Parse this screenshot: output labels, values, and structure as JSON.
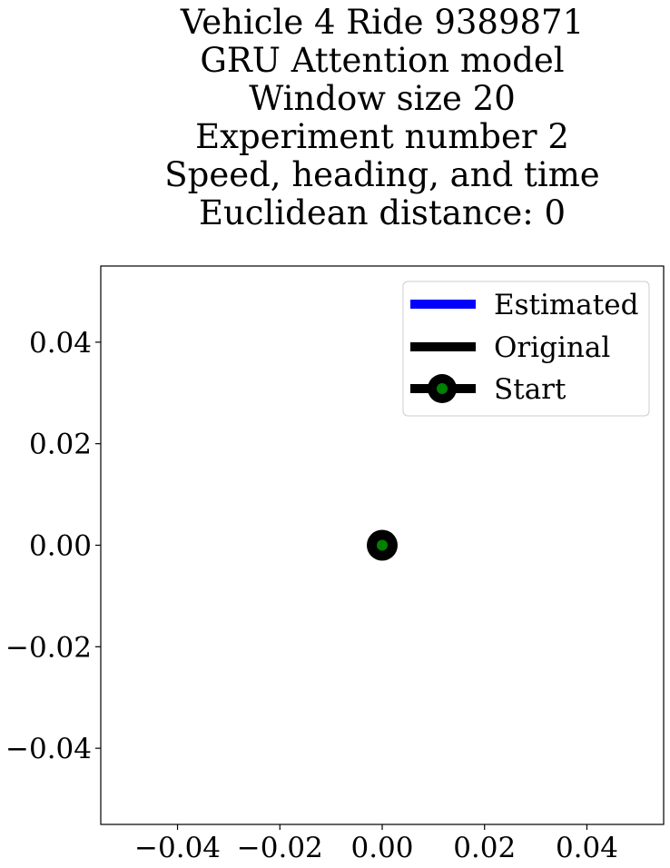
{
  "chart_data": {
    "type": "line",
    "title_lines": [
      "Vehicle 4 Ride 9389871",
      "GRU Attention model",
      "Window size 20",
      "Experiment number 2",
      "Speed, heading, and time",
      "Euclidean distance: 0"
    ],
    "xlabel": "",
    "ylabel": "",
    "xlim": [
      -0.055,
      0.055
    ],
    "ylim": [
      -0.055,
      0.055
    ],
    "x_ticks": [
      -0.04,
      -0.02,
      0.0,
      0.02,
      0.04
    ],
    "y_ticks": [
      0.04,
      0.02,
      0.0,
      -0.02,
      -0.04
    ],
    "x_tick_labels": [
      "−0.04",
      "−0.02",
      "0.00",
      "0.02",
      "0.04"
    ],
    "y_tick_labels": [
      "0.04",
      "0.02",
      "0.00",
      "−0.02",
      "−0.04"
    ],
    "grid": false,
    "legend_position": "top-right",
    "series": [
      {
        "name": "Estimated",
        "color": "#0000ff",
        "x": [
          0
        ],
        "y": [
          0
        ]
      },
      {
        "name": "Original",
        "color": "#000000",
        "x": [
          0
        ],
        "y": [
          0
        ]
      },
      {
        "name": "Start",
        "color": "#000000",
        "marker_face": "#008000",
        "x": [
          0
        ],
        "y": [
          0
        ]
      }
    ]
  }
}
